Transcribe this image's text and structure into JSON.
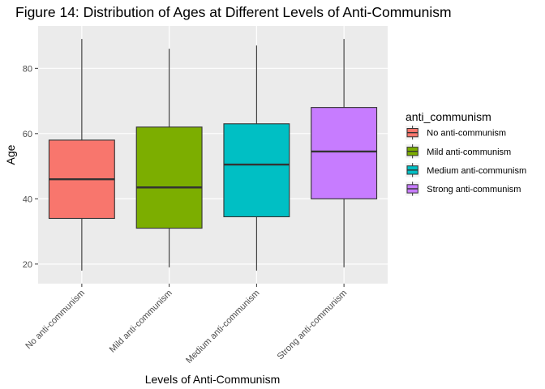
{
  "chart_data": {
    "type": "box",
    "title": "Figure 14: Distribution of Ages at Different Levels of Anti-Communism",
    "xlabel": "Levels of Anti-Communism",
    "ylabel": "Age",
    "ylim": [
      14,
      93
    ],
    "yticks": [
      20,
      40,
      60,
      80
    ],
    "grid": true,
    "legend": {
      "title": "anti_communism",
      "position": "right"
    },
    "categories": [
      "No anti-communism",
      "Mild anti-communism",
      "Medium anti-communism",
      "Strong anti-communism"
    ],
    "legend_labels": [
      "No anti-communism",
      "Mild anti-communism",
      "Medium anti-communism",
      "Strong anti-communism"
    ],
    "colors": [
      "#F8766D",
      "#7CAE00",
      "#00BFC4",
      "#C77CFF"
    ],
    "series": [
      {
        "min": 18,
        "q1": 34,
        "median": 46,
        "q3": 58,
        "max": 89
      },
      {
        "min": 19,
        "q1": 31,
        "median": 43.5,
        "q3": 62,
        "max": 86
      },
      {
        "min": 18,
        "q1": 34.5,
        "median": 50.5,
        "q3": 63,
        "max": 87
      },
      {
        "min": 19,
        "q1": 40,
        "median": 54.5,
        "q3": 68,
        "max": 89
      }
    ]
  }
}
